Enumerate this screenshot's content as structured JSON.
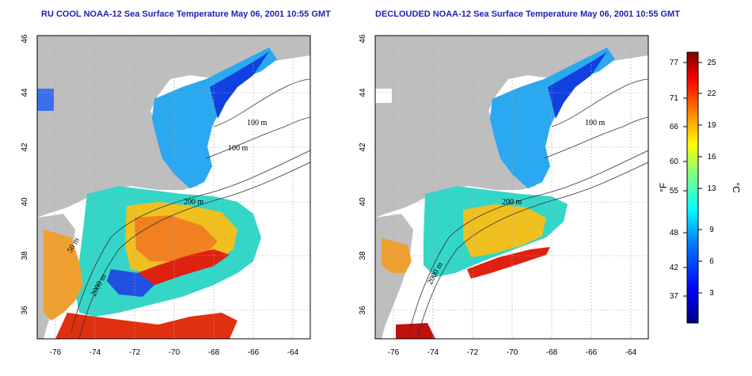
{
  "titles": {
    "left": "RU COOL NOAA-12 Sea Surface Temperature May 06, 2001 10:55 GMT",
    "right": "DECLOUDED NOAA-12 Sea Surface Temperature May 06, 2001 10:55 GMT"
  },
  "x_ticks": [
    "-76",
    "-74",
    "-72",
    "-70",
    "-68",
    "-66",
    "-64"
  ],
  "y_ticks": [
    "46",
    "44",
    "42",
    "40",
    "38",
    "36"
  ],
  "contour_labels": [
    "100 m",
    "100 m",
    "200 m",
    "50 m",
    "2000 m"
  ],
  "colorbar": {
    "f_unit": "°F",
    "c_unit": "°C",
    "f_ticks": [
      "77",
      "71",
      "66",
      "60",
      "55",
      "48",
      "42",
      "37"
    ],
    "c_ticks": [
      "25",
      "22",
      "19",
      "16",
      "13",
      "9",
      "6",
      "3"
    ]
  },
  "colors": {
    "land": "#bebebe",
    "cloud": "#ffffff",
    "title": "#1f1fb4",
    "scale": [
      "#00007f",
      "#0000ff",
      "#0080ff",
      "#00ffff",
      "#80ff80",
      "#ffff00",
      "#ff8000",
      "#ff0000",
      "#7f0000"
    ]
  }
}
